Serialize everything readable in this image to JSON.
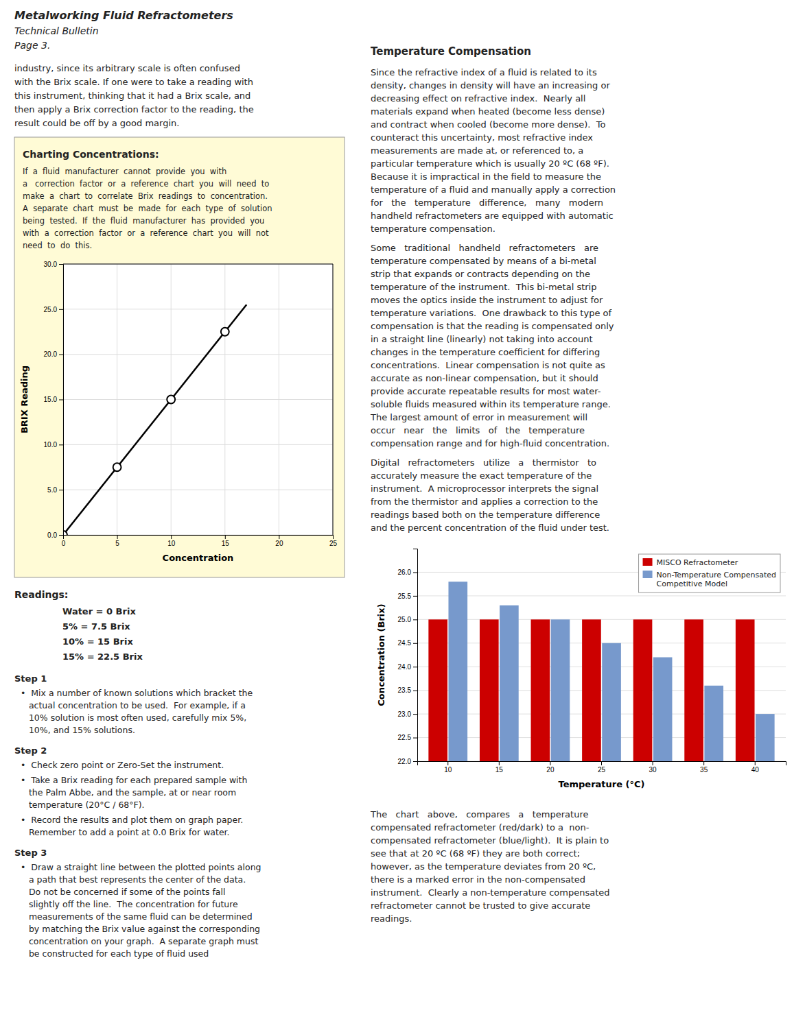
{
  "chart_data": [
    {
      "type": "line",
      "xlabel": "Concentration",
      "ylabel": "BRIX Reading",
      "xlim": [
        0,
        25
      ],
      "xticks": [
        0,
        5,
        10,
        15,
        20,
        25
      ],
      "ylim": [
        0,
        30
      ],
      "yticks": [
        {
          "value": 0,
          "label": "0.0"
        },
        {
          "value": 5,
          "label": "5.0"
        },
        {
          "value": 10,
          "label": "10.0"
        },
        {
          "value": 15,
          "label": "15.0"
        },
        {
          "value": 20,
          "label": "20.0"
        },
        {
          "value": 25,
          "label": "25.0"
        },
        {
          "value": 30,
          "label": "30.0"
        }
      ],
      "grid": true,
      "series": [
        {
          "type": "line",
          "color": "#000000",
          "x": [
            0,
            17
          ],
          "values": [
            0,
            25.5
          ]
        },
        {
          "type": "scatter",
          "color": "#000000",
          "marker": "circle",
          "x": [
            0,
            5,
            10,
            15
          ],
          "values": [
            0,
            7.5,
            15,
            22.5
          ]
        }
      ],
      "annotations": [
        "Metalworking Fluid Refractometers",
        "Technical Bulletin",
        "Page 3.",
        "industry, since its arbitrary scale is often confused\nwith the Brix scale. If one were to take a reading with\nthis instrument, thinking that it had a Brix scale, and\nthen apply a Brix correction factor to the reading, the\nresult could be off by a good margin.",
        "Charting Concentrations:",
        "If  a  fluid  manufacturer  cannot  provide  you  with\na   correction  factor  or  a  reference  chart  you  will  need  to\nmake  a  chart  to  correlate  Brix  readings  to  concentration.\nA  separate  chart  must  be  made  for  each  type  of  solution\nbeing  tested.  If  the  fluid  manufacturer  has  provided  you\nwith  a  correction  factor  or  a  reference  chart  you  will  not\nneed  to  do  this.",
        "Readings:",
        "Water = 0 Brix",
        "5% = 7.5 Brix",
        "10% = 15 Brix",
        "15% = 22.5 Brix",
        "Step 1",
        "•  Mix a number of known solutions which bracket the\n   actual concentration to be used.  For example, if a\n   10% solution is most often used, carefully mix 5%,\n   10%, and 15% solutions.",
        "Step 2",
        "•  Check zero point or Zero-Set the instrument.",
        "•  Take a Brix reading for each prepared sample with\n   the Palm Abbe, and the sample, at or near room\n   temperature (20°C / 68°F).",
        "•  Record the results and plot them on graph paper.\n   Remember to add a point at 0.0 Brix for water.",
        "Step 3",
        "•  Draw a straight line between the plotted points along\n   a path that best represents the center of the data.\n   Do not be concerned if some of the points fall\n   slightly off the line.  The concentration for future\n   measurements of the same fluid can be determined\n   by matching the Brix value against the corresponding\n   concentration on your graph.  A separate graph must\n   be constructed for each type of fluid used"
      ]
    },
    {
      "type": "bar",
      "xlabel": "Temperature (°C)",
      "ylabel": "Concentration (Brix)",
      "categories": [
        10,
        15,
        20,
        25,
        30,
        35,
        40
      ],
      "series": [
        {
          "name": "MISCO Refractometer",
          "color": "#cc0000",
          "values": [
            25.0,
            25.0,
            25.0,
            25.0,
            25.0,
            25.0,
            25.0
          ]
        },
        {
          "name": "Non-Temperature Compensated\nCompetitive Model",
          "color": "#7799cc",
          "values": [
            25.8,
            25.3,
            25.0,
            24.5,
            24.2,
            23.6,
            23.0
          ]
        }
      ],
      "ylim": [
        22.0,
        26.5
      ],
      "yticks": [
        {
          "value": 22.0,
          "label": "22.0"
        },
        22.5,
        {
          "value": 23.0,
          "label": "23.0"
        },
        23.5,
        {
          "value": 24.0,
          "label": "24.0"
        },
        24.5,
        {
          "value": 25.0,
          "label": "25.0"
        },
        25.5,
        {
          "value": 26.0,
          "label": "26.0"
        }
      ],
      "grid": true,
      "legend": "upper right",
      "annotations": [
        "Temperature Compensation",
        "Since the refractive index of a fluid is related to its\ndensity, changes in density will have an increasing or\ndecreasing effect on refractive index.  Nearly all\nmaterials expand when heated (become less dense)\nand contract when cooled (become more dense).  To\ncounteract this uncertainty, most refractive index\nmeasurements are made at, or referenced to, a\nparticular temperature which is usually 20 ºC (68 ºF).\nBecause it is impractical in the field to measure the\ntemperature of a fluid and manually apply a correction\nfor   the   temperature   difference,   many   modern\nhandheld refractometers are equipped with automatic\ntemperature compensation.",
        "Some   traditional   handheld   refractometers   are\ntemperature compensated by means of a bi-metal\nstrip that expands or contracts depending on the\ntemperature of the instrument.  This bi-metal strip\nmoves the optics inside the instrument to adjust for\ntemperature variations.  One drawback to this type of\ncompensation is that the reading is compensated only\nin a straight line (linearly) not taking into account\nchanges in the temperature coefficient for differing\nconcentrations.  Linear compensation is not quite as\naccurate as non-linear compensation, but it should\nprovide accurate repeatable results for most water-\nsoluble fluids measured within its temperature range.\nThe largest amount of error in measurement will\noccur   near   the   limits   of   the   temperature\ncompensation range and for high-fluid concentration.",
        "Digital   refractometers   utilize   a   thermistor   to\naccurately measure the exact temperature of the\ninstrument.  A microprocessor interprets the signal\nfrom the thermistor and applies a correction to the\nreadings based both on the temperature difference\nand the percent concentration of the fluid under test.",
        "The   chart   above,   compares   a   temperature\ncompensated refractometer (red/dark) to a  non-\ncompensated refractometer (blue/light).  It is plain to\nsee that at 20 ºC (68 ºF) they are both correct;\nhowever, as the temperature deviates from 20 ºC,\nthere is a marked error in the non-compensated\ninstrument.  Clearly a non-temperature compensated\nrefractometer cannot be trusted to give accurate\nreadings."
      ]
    }
  ]
}
